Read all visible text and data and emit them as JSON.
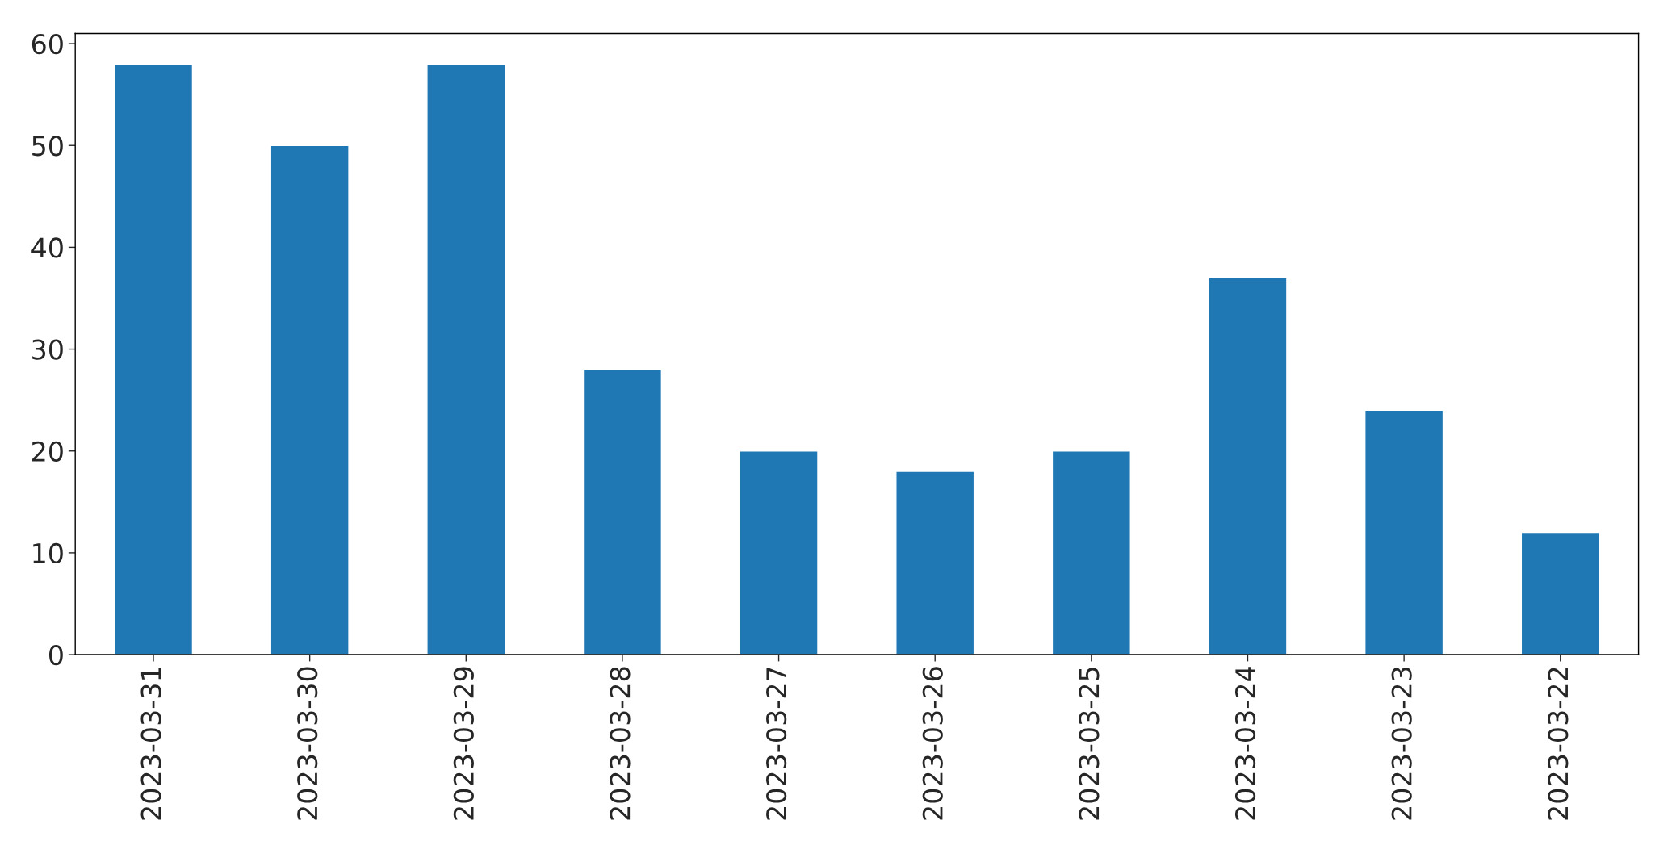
{
  "chart_data": {
    "type": "bar",
    "categories": [
      "2023-03-31",
      "2023-03-30",
      "2023-03-29",
      "2023-03-28",
      "2023-03-27",
      "2023-03-26",
      "2023-03-25",
      "2023-03-24",
      "2023-03-23",
      "2023-03-22"
    ],
    "values": [
      58,
      50,
      58,
      28,
      20,
      18,
      20,
      37,
      24,
      12
    ],
    "color": "#1f77b4",
    "ylim": [
      0,
      61
    ],
    "yticks": [
      0,
      10,
      20,
      30,
      40,
      50,
      60
    ],
    "grid": false,
    "legend": false
  }
}
